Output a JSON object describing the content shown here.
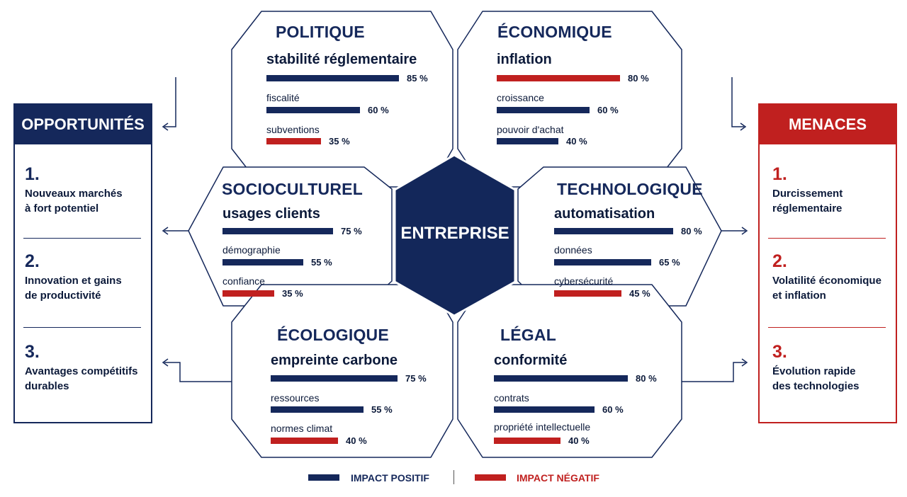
{
  "center_label": "ENTREPRISE",
  "colors": {
    "positive": "#15285b",
    "negative": "#c0201f",
    "border": "#15285b"
  },
  "hexagons": [
    {
      "title": "POLITIQUE",
      "rows": [
        {
          "label": "stabilité réglementaire",
          "value": 85,
          "impact": "positive"
        },
        {
          "label": "fiscalité",
          "value": 60,
          "impact": "positive"
        },
        {
          "label": "subventions",
          "value": 35,
          "impact": "negative"
        }
      ]
    },
    {
      "title": "ÉCONOMIQUE",
      "rows": [
        {
          "label": "inflation",
          "value": 80,
          "impact": "negative"
        },
        {
          "label": "croissance",
          "value": 60,
          "impact": "positive"
        },
        {
          "label": "pouvoir d'achat",
          "value": 40,
          "impact": "positive"
        }
      ]
    },
    {
      "title": "SOCIOCULTUREL",
      "rows": [
        {
          "label": "usages clients",
          "value": 75,
          "impact": "positive"
        },
        {
          "label": "démographie",
          "value": 55,
          "impact": "positive"
        },
        {
          "label": "confiance",
          "value": 35,
          "impact": "negative"
        }
      ]
    },
    {
      "title": "TECHNOLOGIQUE",
      "rows": [
        {
          "label": "automatisation",
          "value": 80,
          "impact": "positive"
        },
        {
          "label": "données",
          "value": 65,
          "impact": "positive"
        },
        {
          "label": "cybersécurité",
          "value": 45,
          "impact": "negative"
        }
      ]
    },
    {
      "title": "ÉCOLOGIQUE",
      "rows": [
        {
          "label": "empreinte carbone",
          "value": 75,
          "impact": "positive"
        },
        {
          "label": "ressources",
          "value": 55,
          "impact": "positive"
        },
        {
          "label": "normes climat",
          "value": 40,
          "impact": "negative"
        }
      ]
    },
    {
      "title": "LÉGAL",
      "rows": [
        {
          "label": "conformité",
          "value": 80,
          "impact": "positive"
        },
        {
          "label": "contrats",
          "value": 60,
          "impact": "positive"
        },
        {
          "label": "propriété intellectuelle",
          "value": 40,
          "impact": "negative"
        }
      ]
    }
  ],
  "opportunities": {
    "title": "OPPORTUNITÉS",
    "items": [
      {
        "number": "1.",
        "text": [
          "Nouveaux marchés",
          "à fort potentiel"
        ]
      },
      {
        "number": "2.",
        "text": [
          "Innovation et gains",
          "de productivité"
        ]
      },
      {
        "number": "3.",
        "text": [
          "Avantages compétitifs",
          "durables"
        ]
      }
    ]
  },
  "threats": {
    "title": "MENACES",
    "items": [
      {
        "number": "1.",
        "text": [
          "Durcissement",
          "réglementaire"
        ]
      },
      {
        "number": "2.",
        "text": [
          "Volatilité économique",
          "et inflation"
        ]
      },
      {
        "number": "3.",
        "text": [
          "Évolution rapide",
          "des technologies"
        ]
      }
    ]
  },
  "legend": {
    "positive": "IMPACT POSITIF",
    "negative": "IMPACT NÉGATIF"
  }
}
